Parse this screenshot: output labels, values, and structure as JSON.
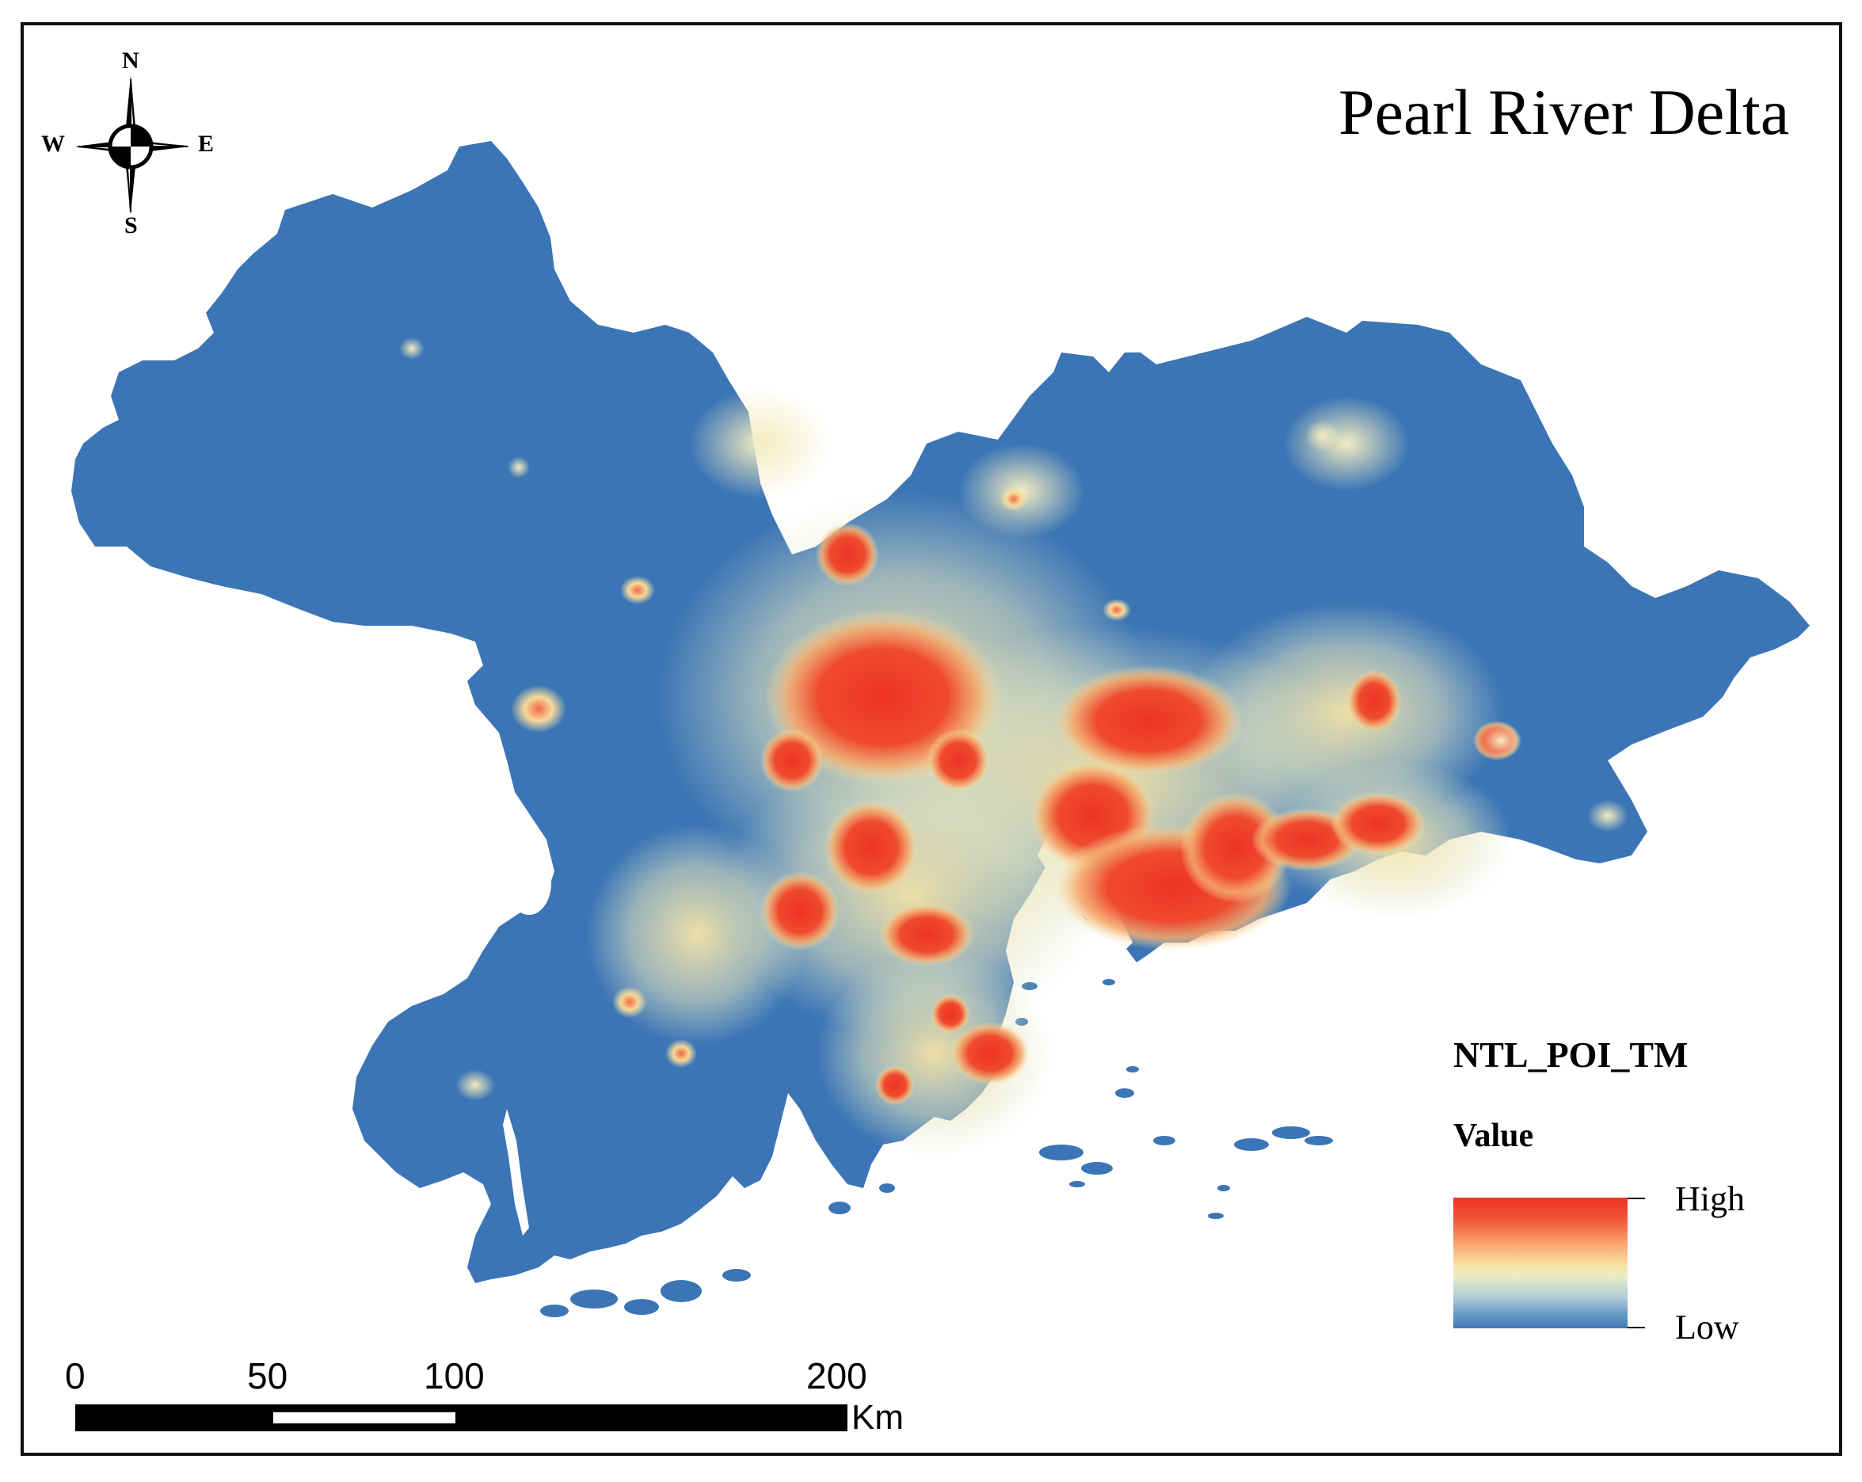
{
  "map": {
    "title": "Pearl River Delta",
    "compass": {
      "north": "N",
      "south": "S",
      "east": "E",
      "west": "W",
      "icon": "compass-rose-icon"
    },
    "legend": {
      "title": "NTL_POI_TM",
      "subtitle": "Value",
      "high_label": "High",
      "low_label": "Low",
      "colors": {
        "high": "#ee3324",
        "mid": "#f7e4a6",
        "low": "#3f78b6"
      }
    },
    "scale_bar": {
      "ticks": [
        "0",
        "50",
        "100",
        "200"
      ],
      "unit": "Km"
    },
    "colors": {
      "land": "#3b75b5",
      "urban_high": "#ee3324",
      "urban_mid": "#f7df9e",
      "frame": "#111111"
    }
  }
}
